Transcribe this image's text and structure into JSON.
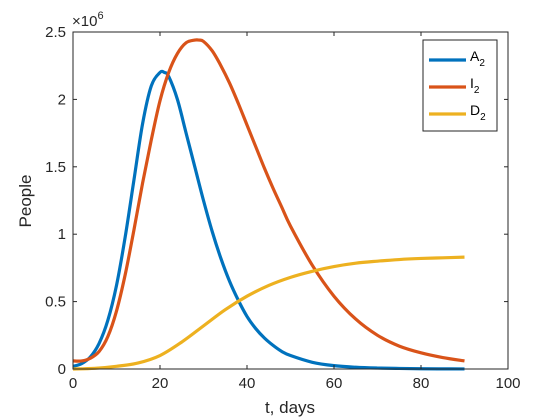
{
  "chart_data": {
    "type": "line",
    "xlabel": "t, days",
    "ylabel": "People",
    "xlim": [
      0,
      100
    ],
    "ylim": [
      0,
      2500000
    ],
    "x_ticks": [
      0,
      20,
      40,
      60,
      80,
      100
    ],
    "x_tick_labels": [
      "0",
      "20",
      "40",
      "60",
      "80",
      "100"
    ],
    "y_ticks": [
      0,
      500000,
      1000000,
      1500000,
      2000000,
      2500000
    ],
    "y_tick_labels": [
      "0",
      "0.5",
      "1",
      "1.5",
      "2",
      "2.5"
    ],
    "y_exponent": {
      "base": "×10",
      "power": "6"
    },
    "grid": false,
    "legend_position": "top-right",
    "series": [
      {
        "name": "A",
        "subscript": "2",
        "color": "#0072BD",
        "x": [
          0,
          2,
          4,
          6,
          8,
          10,
          12,
          14,
          16,
          18,
          20,
          21,
          22,
          24,
          26,
          28,
          30,
          32,
          34,
          36,
          38,
          40,
          42,
          44,
          46,
          48,
          50,
          55,
          60,
          65,
          70,
          75,
          80,
          85,
          90
        ],
        "y": [
          20000,
          40000,
          90000,
          190000,
          360000,
          620000,
          980000,
          1400000,
          1820000,
          2100000,
          2200000,
          2200000,
          2170000,
          2000000,
          1750000,
          1500000,
          1250000,
          1020000,
          820000,
          650000,
          510000,
          390000,
          300000,
          230000,
          175000,
          130000,
          100000,
          50000,
          25000,
          13000,
          7000,
          4000,
          2000,
          1000,
          500
        ]
      },
      {
        "name": "I",
        "subscript": "2",
        "color": "#D95319",
        "x": [
          0,
          2,
          4,
          6,
          8,
          10,
          12,
          14,
          16,
          18,
          20,
          22,
          24,
          26,
          28,
          29,
          30,
          32,
          34,
          36,
          38,
          40,
          42,
          44,
          46,
          48,
          50,
          55,
          60,
          65,
          70,
          75,
          80,
          85,
          90
        ],
        "y": [
          60000,
          60000,
          80000,
          130000,
          240000,
          430000,
          700000,
          1030000,
          1380000,
          1700000,
          1990000,
          2200000,
          2340000,
          2420000,
          2440000,
          2440000,
          2430000,
          2360000,
          2250000,
          2120000,
          1970000,
          1810000,
          1650000,
          1490000,
          1340000,
          1200000,
          1060000,
          770000,
          540000,
          370000,
          250000,
          170000,
          120000,
          85000,
          60000
        ]
      },
      {
        "name": "D",
        "subscript": "2",
        "color": "#EDB120",
        "x": [
          0,
          5,
          10,
          15,
          20,
          25,
          30,
          35,
          40,
          45,
          50,
          55,
          60,
          65,
          70,
          75,
          80,
          85,
          90
        ],
        "y": [
          0,
          5000,
          20000,
          45000,
          100000,
          200000,
          320000,
          440000,
          540000,
          620000,
          680000,
          725000,
          760000,
          785000,
          800000,
          812000,
          820000,
          825000,
          830000
        ]
      }
    ]
  }
}
